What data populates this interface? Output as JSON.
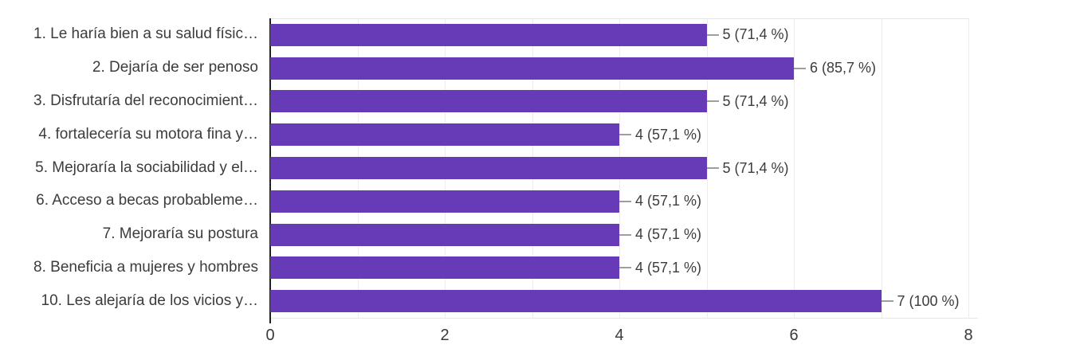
{
  "chart_data": {
    "type": "bar",
    "orientation": "horizontal",
    "title": "",
    "xlabel": "",
    "ylabel": "",
    "xlim": [
      0,
      8
    ],
    "x_ticks": [
      "0",
      "2",
      "4",
      "6",
      "8"
    ],
    "grid": true,
    "legend": "none",
    "bar_color": "#673ab7",
    "grid_color": "#ececec",
    "plot_border_color": "#e6e6e6",
    "zero_axis_color": "#212121",
    "connector_color": "#9e9e9e",
    "text_color": "#3c3c3c",
    "categories": [
      "1. Le haría bien a su salud físic…",
      "2. Dejaría de ser penoso",
      "3. Disfrutaría del reconocimient…",
      "4. fortalecería su motora fina y…",
      "5. Mejoraría la sociabilidad y el…",
      "6. Acceso a becas probableme…",
      "7. Mejoraría su postura",
      "8. Beneficia a mujeres y hombres",
      "10. Les alejaría de los vicios y…"
    ],
    "values": [
      5,
      6,
      5,
      4,
      5,
      4,
      4,
      4,
      7
    ],
    "percentages": [
      71.4,
      85.7,
      71.4,
      57.1,
      71.4,
      57.1,
      57.1,
      57.1,
      100
    ],
    "value_labels": [
      "5 (71,4 %)",
      "6 (85,7 %)",
      "5 (71,4 %)",
      "4 (57,1 %)",
      "5 (71,4 %)",
      "4 (57,1 %)",
      "4 (57,1 %)",
      "4 (57,1 %)",
      "7 (100 %)"
    ]
  }
}
